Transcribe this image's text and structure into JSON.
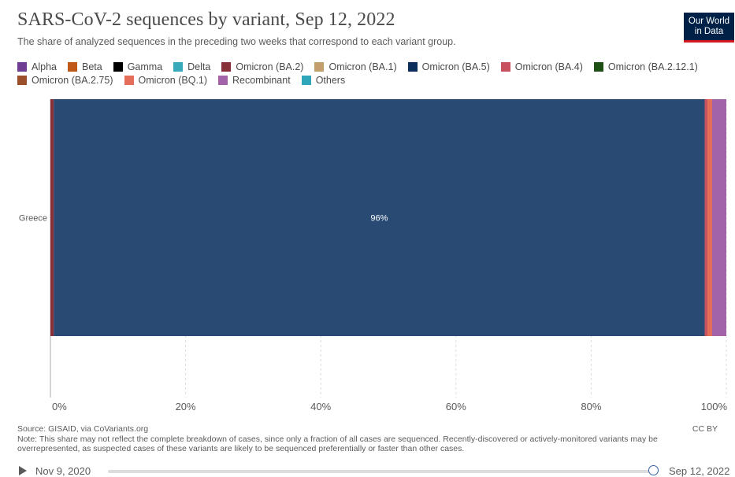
{
  "header": {
    "title": "SARS-CoV-2 sequences by variant, Sep 12, 2022",
    "subtitle": "The share of analyzed sequences in the preceding two weeks that correspond to each variant group.",
    "logo_line1": "Our World",
    "logo_line2": "in Data"
  },
  "legend": [
    {
      "name": "Alpha",
      "color": "#6d3e91"
    },
    {
      "name": "Beta",
      "color": "#c05917"
    },
    {
      "name": "Gamma",
      "color": "#000000"
    },
    {
      "name": "Delta",
      "color": "#38aaba"
    },
    {
      "name": "Omicron (BA.2)",
      "color": "#883039"
    },
    {
      "name": "Omicron (BA.1)",
      "color": "#c39f6e"
    },
    {
      "name": "Omicron (BA.5)",
      "color": "#0c2f5c"
    },
    {
      "name": "Omicron (BA.4)",
      "color": "#c8515e"
    },
    {
      "name": "Omicron (BA.2.12.1)",
      "color": "#1e5016"
    },
    {
      "name": "Omicron (BA.2.75)",
      "color": "#9a5129"
    },
    {
      "name": "Omicron (BQ.1)",
      "color": "#e56e5a"
    },
    {
      "name": "Recombinant",
      "color": "#a263a8"
    },
    {
      "name": "Others",
      "color": "#2fa6b9"
    }
  ],
  "chart_data": {
    "type": "bar",
    "orientation": "horizontal",
    "stacked": true,
    "categories": [
      "Greece"
    ],
    "series": [
      {
        "name": "Omicron (BA.2)",
        "color": "#883039",
        "values": [
          0.5
        ]
      },
      {
        "name": "Omicron (BA.5)",
        "color": "#284a73",
        "values": [
          96.3
        ]
      },
      {
        "name": "Omicron (BA.4)",
        "color": "#c8515e",
        "values": [
          0.4
        ]
      },
      {
        "name": "Omicron (BQ.1)",
        "color": "#e56e5a",
        "values": [
          0.7
        ]
      },
      {
        "name": "Recombinant",
        "color": "#a263a8",
        "values": [
          2.1
        ]
      }
    ],
    "data_labels": [
      {
        "category": "Greece",
        "series": "Omicron (BA.5)",
        "text": "96%"
      }
    ],
    "xlim": [
      0,
      100
    ],
    "xticks": [
      0,
      20,
      40,
      60,
      80,
      100
    ],
    "xtick_labels": [
      "0%",
      "20%",
      "40%",
      "60%",
      "80%",
      "100%"
    ],
    "grid": "vertical-dashed"
  },
  "footer": {
    "source": "Source: GISAID, via CoVariants.org",
    "license": "CC BY",
    "note": "Note: This share may not reflect the complete breakdown of cases, since only a fraction of all cases are sequenced. Recently-discovered or actively-monitored variants may be overrepresented, as suspected cases of these variants are likely to be sequenced preferentially or faster than other cases."
  },
  "timeline": {
    "start_label": "Nov 9, 2020",
    "end_label": "Sep 12, 2022",
    "position": 1.0
  }
}
